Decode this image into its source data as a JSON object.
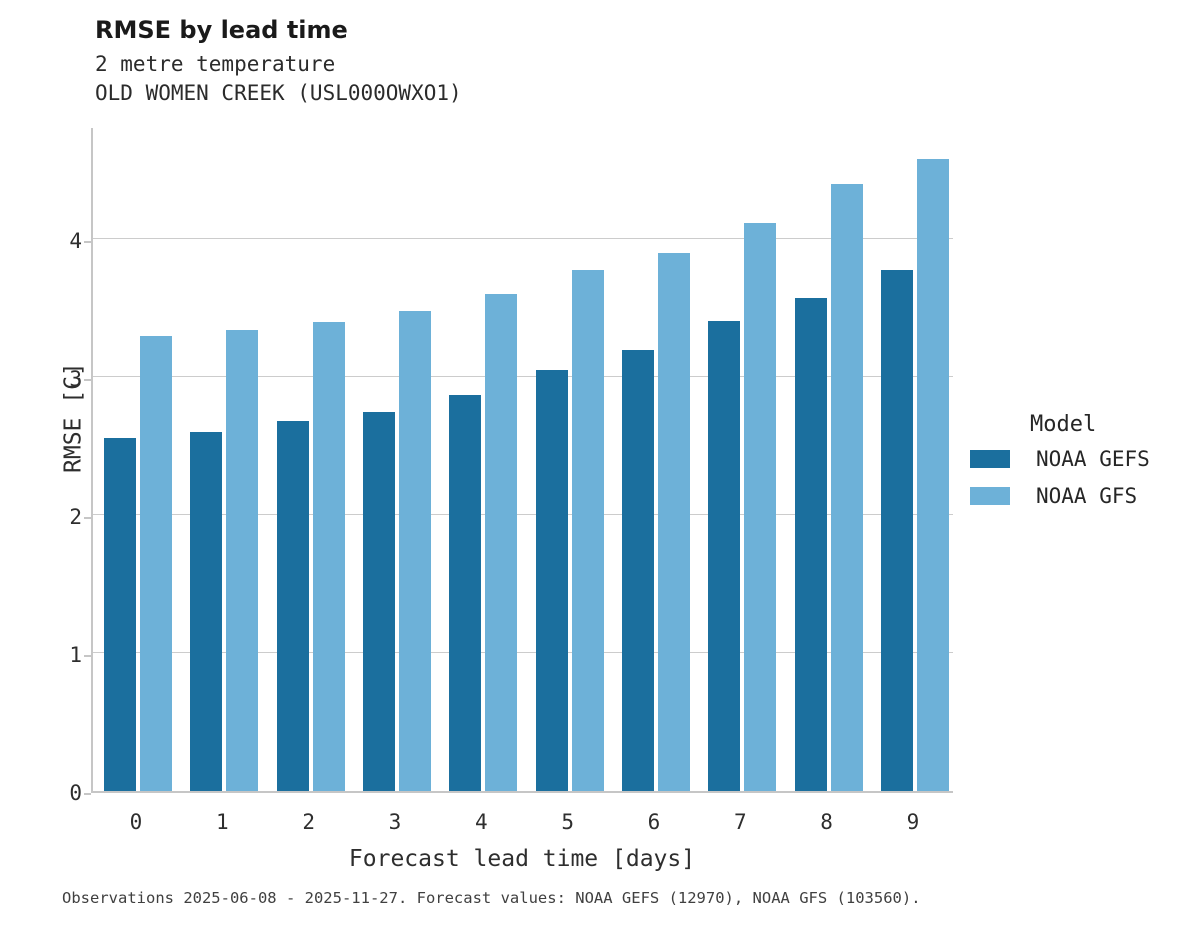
{
  "header": {
    "title": "RMSE by lead time",
    "subtitle_line1": "2 metre temperature",
    "subtitle_line2": "OLD WOMEN CREEK (USL000OWXO1)"
  },
  "chart_data": {
    "type": "bar",
    "categories": [
      "0",
      "1",
      "2",
      "3",
      "4",
      "5",
      "6",
      "7",
      "8",
      "9"
    ],
    "series": [
      {
        "name": "NOAA GEFS",
        "color": "#1b6f9e",
        "values": [
          2.56,
          2.6,
          2.68,
          2.75,
          2.87,
          3.05,
          3.2,
          3.41,
          3.57,
          3.78
        ]
      },
      {
        "name": "NOAA GFS",
        "color": "#6db1d8",
        "values": [
          3.3,
          3.34,
          3.4,
          3.48,
          3.6,
          3.78,
          3.9,
          4.12,
          4.4,
          4.58
        ]
      }
    ],
    "title": "RMSE by lead time",
    "xlabel": "Forecast lead time [days]",
    "ylabel": "RMSE [C]",
    "yticks": [
      0,
      1,
      2,
      3,
      4
    ],
    "ylim": [
      0,
      4.82
    ],
    "grid": true,
    "legend_title": "Model",
    "legend_position": "right"
  },
  "legend": {
    "title": "Model",
    "entries": [
      {
        "label": "NOAA GEFS",
        "color": "#1b6f9e"
      },
      {
        "label": "NOAA GFS",
        "color": "#6db1d8"
      }
    ]
  },
  "footer": {
    "caption": "Observations 2025-06-08 - 2025-11-27. Forecast values: NOAA GEFS (12970), NOAA GFS (103560)."
  }
}
